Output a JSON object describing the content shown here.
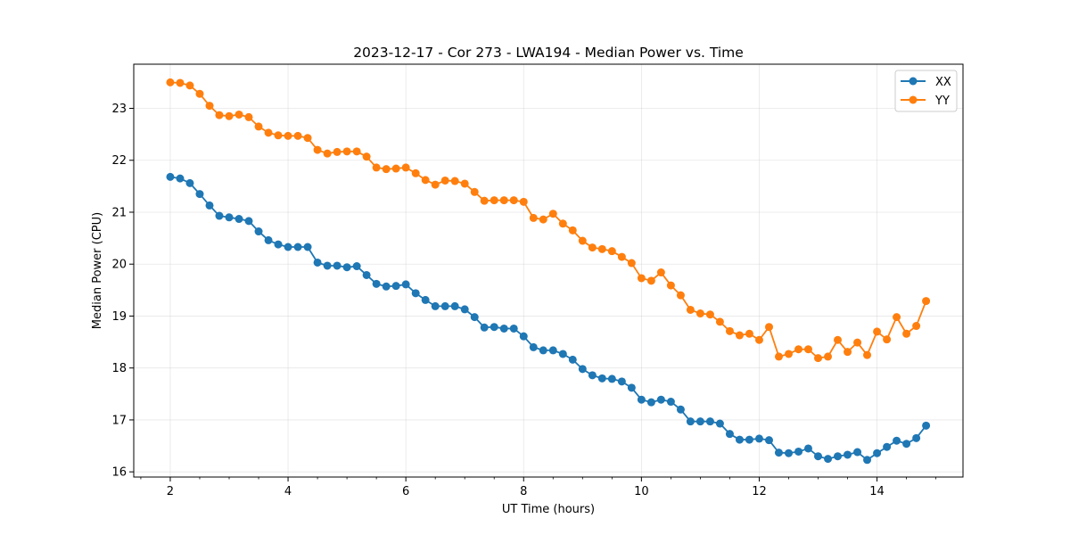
{
  "chart_data": {
    "type": "line",
    "title": "2023-12-17 - Cor 273 - LWA194 - Median Power vs. Time",
    "xlabel": "UT Time (hours)",
    "ylabel": "Median Power (CPU)",
    "xlim": [
      1.38,
      15.46
    ],
    "ylim": [
      15.9,
      23.85
    ],
    "xticks": [
      2,
      4,
      6,
      8,
      10,
      12,
      14
    ],
    "xtick_labels": [
      "2",
      "4",
      "6",
      "8",
      "10",
      "12",
      "14"
    ],
    "yticks": [
      16,
      17,
      18,
      19,
      20,
      21,
      22,
      23
    ],
    "ytick_labels": [
      "16",
      "17",
      "18",
      "19",
      "20",
      "21",
      "22",
      "23"
    ],
    "grid": true,
    "legend_position": "top-right",
    "x": [
      2.0,
      2.167,
      2.333,
      2.5,
      2.667,
      2.833,
      3.0,
      3.167,
      3.333,
      3.5,
      3.667,
      3.833,
      4.0,
      4.167,
      4.333,
      4.5,
      4.667,
      4.833,
      5.0,
      5.167,
      5.333,
      5.5,
      5.667,
      5.833,
      6.0,
      6.167,
      6.333,
      6.5,
      6.667,
      6.833,
      7.0,
      7.167,
      7.333,
      7.5,
      7.667,
      7.833,
      8.0,
      8.167,
      8.333,
      8.5,
      8.667,
      8.833,
      9.0,
      9.167,
      9.333,
      9.5,
      9.667,
      9.833,
      10.0,
      10.167,
      10.333,
      10.5,
      10.667,
      10.833,
      11.0,
      11.167,
      11.333,
      11.5,
      11.667,
      11.833,
      12.0,
      12.167,
      12.333,
      12.5,
      12.667,
      12.833,
      13.0,
      13.167,
      13.333,
      13.5,
      13.667,
      13.833,
      14.0,
      14.167,
      14.333,
      14.5,
      14.667,
      14.833
    ],
    "series": [
      {
        "name": "XX",
        "color": "#1f77b4",
        "values": [
          21.68,
          21.65,
          21.56,
          21.35,
          21.13,
          20.93,
          20.9,
          20.87,
          20.83,
          20.63,
          20.46,
          20.38,
          20.33,
          20.33,
          20.33,
          20.03,
          19.97,
          19.97,
          19.94,
          19.96,
          19.79,
          19.62,
          19.57,
          19.58,
          19.61,
          19.44,
          19.31,
          19.19,
          19.19,
          19.19,
          19.13,
          18.98,
          18.78,
          18.79,
          18.76,
          18.76,
          18.61,
          18.4,
          18.34,
          18.34,
          18.27,
          18.16,
          17.98,
          17.86,
          17.8,
          17.79,
          17.74,
          17.62,
          17.39,
          17.34,
          17.39,
          17.35,
          17.2,
          16.97,
          16.97,
          16.97,
          16.93,
          16.73,
          16.62,
          16.62,
          16.64,
          16.61,
          16.37,
          16.36,
          16.39,
          16.45,
          16.3,
          16.25,
          16.3,
          16.33,
          16.38,
          16.23,
          16.36,
          16.48,
          16.6,
          16.54,
          16.65,
          16.89
        ]
      },
      {
        "name": "YY",
        "color": "#ff7f0e",
        "values": [
          23.5,
          23.49,
          23.44,
          23.28,
          23.05,
          22.87,
          22.85,
          22.88,
          22.83,
          22.65,
          22.53,
          22.48,
          22.47,
          22.47,
          22.43,
          22.2,
          22.13,
          22.16,
          22.17,
          22.17,
          22.07,
          21.86,
          21.83,
          21.84,
          21.86,
          21.75,
          21.62,
          21.53,
          21.61,
          21.6,
          21.55,
          21.39,
          21.22,
          21.23,
          21.23,
          21.23,
          21.2,
          20.89,
          20.86,
          20.97,
          20.78,
          20.65,
          20.45,
          20.32,
          20.29,
          20.25,
          20.14,
          20.02,
          19.73,
          19.68,
          19.84,
          19.59,
          19.4,
          19.12,
          19.05,
          19.03,
          18.89,
          18.71,
          18.63,
          18.66,
          18.54,
          18.79,
          18.22,
          18.27,
          18.36,
          18.36,
          18.19,
          18.22,
          18.54,
          18.31,
          18.49,
          18.25,
          18.7,
          18.55,
          18.98,
          18.66,
          18.81,
          19.29
        ]
      }
    ]
  }
}
